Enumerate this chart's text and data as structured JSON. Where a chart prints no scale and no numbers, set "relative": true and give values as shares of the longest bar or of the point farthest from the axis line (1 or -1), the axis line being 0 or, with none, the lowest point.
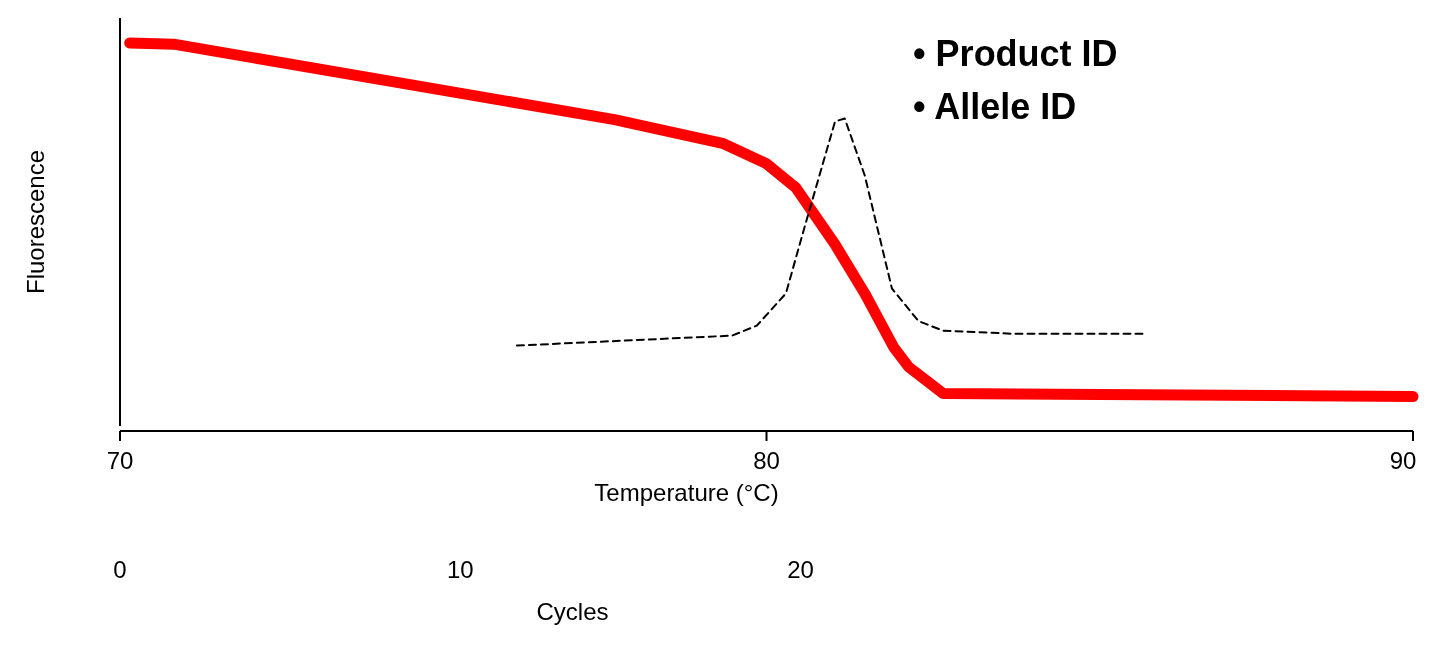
{
  "chart_data": {
    "type": "line",
    "relative": true,
    "xlabel": "Temperature (°C)",
    "ylabel": "Fluorescence",
    "x2label": "Cycles",
    "xlim": [
      70,
      90
    ],
    "xticks": [
      70,
      80,
      90
    ],
    "x2lim": [
      0,
      38
    ],
    "x2ticks": [
      0,
      10,
      20
    ],
    "annotations": [
      "• Product ID",
      "• Allele ID"
    ],
    "marker": "none",
    "series": [
      {
        "color": "#ff0000",
        "line_style": "solid",
        "x": [
          70.15,
          70.83,
          77.65,
          79.32,
          80.0,
          80.45,
          81.06,
          81.52,
          81.97,
          82.2,
          82.73,
          90
        ],
        "values": [
          1.0,
          0.997,
          0.8,
          0.738,
          0.685,
          0.623,
          0.474,
          0.346,
          0.205,
          0.154,
          0.085,
          0.077
        ]
      },
      {
        "color": "#000000",
        "line_style": "dashed",
        "x": [
          76.14,
          79.47,
          79.85,
          80.3,
          80.6,
          81.06,
          81.21,
          81.52,
          81.94,
          82.35,
          82.73,
          83.79,
          85.83
        ],
        "values": [
          0.21,
          0.236,
          0.262,
          0.346,
          0.526,
          0.795,
          0.803,
          0.654,
          0.359,
          0.274,
          0.249,
          0.241,
          0.241
        ]
      }
    ]
  }
}
